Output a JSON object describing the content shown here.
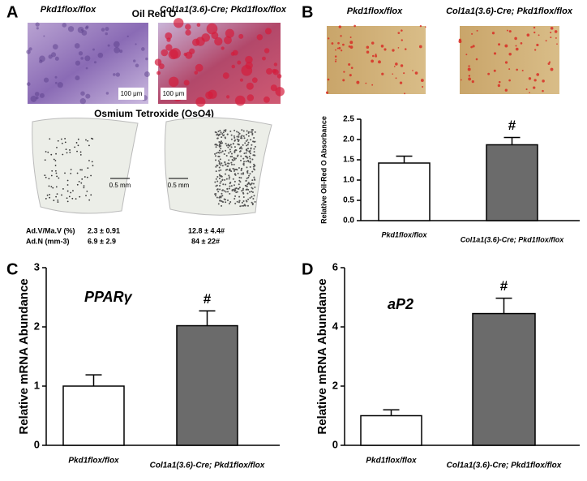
{
  "panel_a": {
    "label": "A",
    "left_title": "Pkd1flox/flox",
    "stain_title": "Oil Red O",
    "right_title": "Col1a1(3.6)-Cre; Pkd1flox/flox",
    "scale_photo_left": "100 μm",
    "scale_photo_right": "100 μm",
    "ct_title": "Osmium Tetroxide (OsO4)",
    "scale_ct_left": "0.5 mm",
    "scale_ct_right": "0.5 mm",
    "stats": {
      "row_labels": [
        "Ad.V/Ma.V (%)",
        "Ad.N (mm-3)"
      ],
      "left": [
        "2.3 ± 0.91",
        "6.9 ± 2.9"
      ],
      "right": [
        "12.8 ± 4.4#",
        "84 ± 22#"
      ]
    }
  },
  "panel_b_photos": {
    "left_title": "Pkd1flox/flox",
    "right_title": "Col1a1(3.6)-Cre; Pkd1flox/flox"
  },
  "chart_data": [
    {
      "type": "bar",
      "panel": "B",
      "ylabel": "Relative Oil-Red O Absorbance",
      "categories": [
        "Pkd1flox/flox",
        "Col1a1(3.6)-Cre; Pkd1flox/flox"
      ],
      "values": [
        1.42,
        1.87
      ],
      "errors": [
        0.17,
        0.18
      ],
      "colors": [
        "#ffffff",
        "#6b6b6b"
      ],
      "annotation": "#",
      "ylim": [
        0,
        2.5
      ],
      "yticks": [
        {
          "value": 0,
          "label": "0.0"
        },
        {
          "value": 0.5,
          "label": "0.5"
        },
        {
          "value": 1,
          "label": "1.0"
        },
        {
          "value": 1.5,
          "label": "1.5"
        },
        {
          "value": 2,
          "label": "2.0"
        },
        {
          "value": 2.5,
          "label": "2.5"
        }
      ]
    },
    {
      "type": "bar",
      "panel": "C",
      "gene_label": "PPARγ",
      "ylabel": "Relative mRNA Abundance",
      "categories": [
        "Pkd1flox/flox",
        "Col1a1(3.6)-Cre; Pkd1flox/flox"
      ],
      "values": [
        1.0,
        2.02
      ],
      "errors": [
        0.19,
        0.25
      ],
      "colors": [
        "#ffffff",
        "#6b6b6b"
      ],
      "annotation": "#",
      "ylim": [
        0,
        3
      ],
      "yticks": [
        0,
        1,
        2,
        3
      ]
    },
    {
      "type": "bar",
      "panel": "D",
      "gene_label": "aP2",
      "ylabel": "Relative mRNA Abundance",
      "categories": [
        "Pkd1flox/flox",
        "Col1a1(3.6)-Cre; Pkd1flox/flox"
      ],
      "values": [
        1.0,
        4.45
      ],
      "errors": [
        0.2,
        0.52
      ],
      "colors": [
        "#ffffff",
        "#6b6b6b"
      ],
      "annotation": "#",
      "ylim": [
        0,
        6
      ],
      "yticks": [
        0,
        2,
        4,
        6
      ]
    }
  ]
}
